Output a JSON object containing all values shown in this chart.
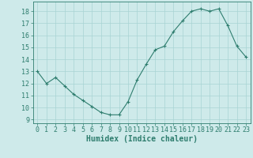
{
  "x": [
    0,
    1,
    2,
    3,
    4,
    5,
    6,
    7,
    8,
    9,
    10,
    11,
    12,
    13,
    14,
    15,
    16,
    17,
    18,
    19,
    20,
    21,
    22,
    23
  ],
  "y": [
    13,
    12,
    12.5,
    11.8,
    11.1,
    10.6,
    10.1,
    9.6,
    9.4,
    9.4,
    10.5,
    12.3,
    13.6,
    14.8,
    15.1,
    16.3,
    17.2,
    18.0,
    18.2,
    18.0,
    18.2,
    16.8,
    15.1,
    14.2
  ],
  "xlabel": "Humidex (Indice chaleur)",
  "xlim": [
    -0.5,
    23.5
  ],
  "ylim": [
    8.7,
    18.8
  ],
  "yticks": [
    9,
    10,
    11,
    12,
    13,
    14,
    15,
    16,
    17,
    18
  ],
  "xticks": [
    0,
    1,
    2,
    3,
    4,
    5,
    6,
    7,
    8,
    9,
    10,
    11,
    12,
    13,
    14,
    15,
    16,
    17,
    18,
    19,
    20,
    21,
    22,
    23
  ],
  "line_color": "#2e7d6e",
  "marker": "+",
  "marker_size": 3.5,
  "bg_color": "#ceeaea",
  "grid_color": "#a8d4d4",
  "axis_color": "#2e7d6e",
  "tick_color": "#2e7d6e",
  "label_fontsize": 7,
  "tick_fontsize": 6
}
